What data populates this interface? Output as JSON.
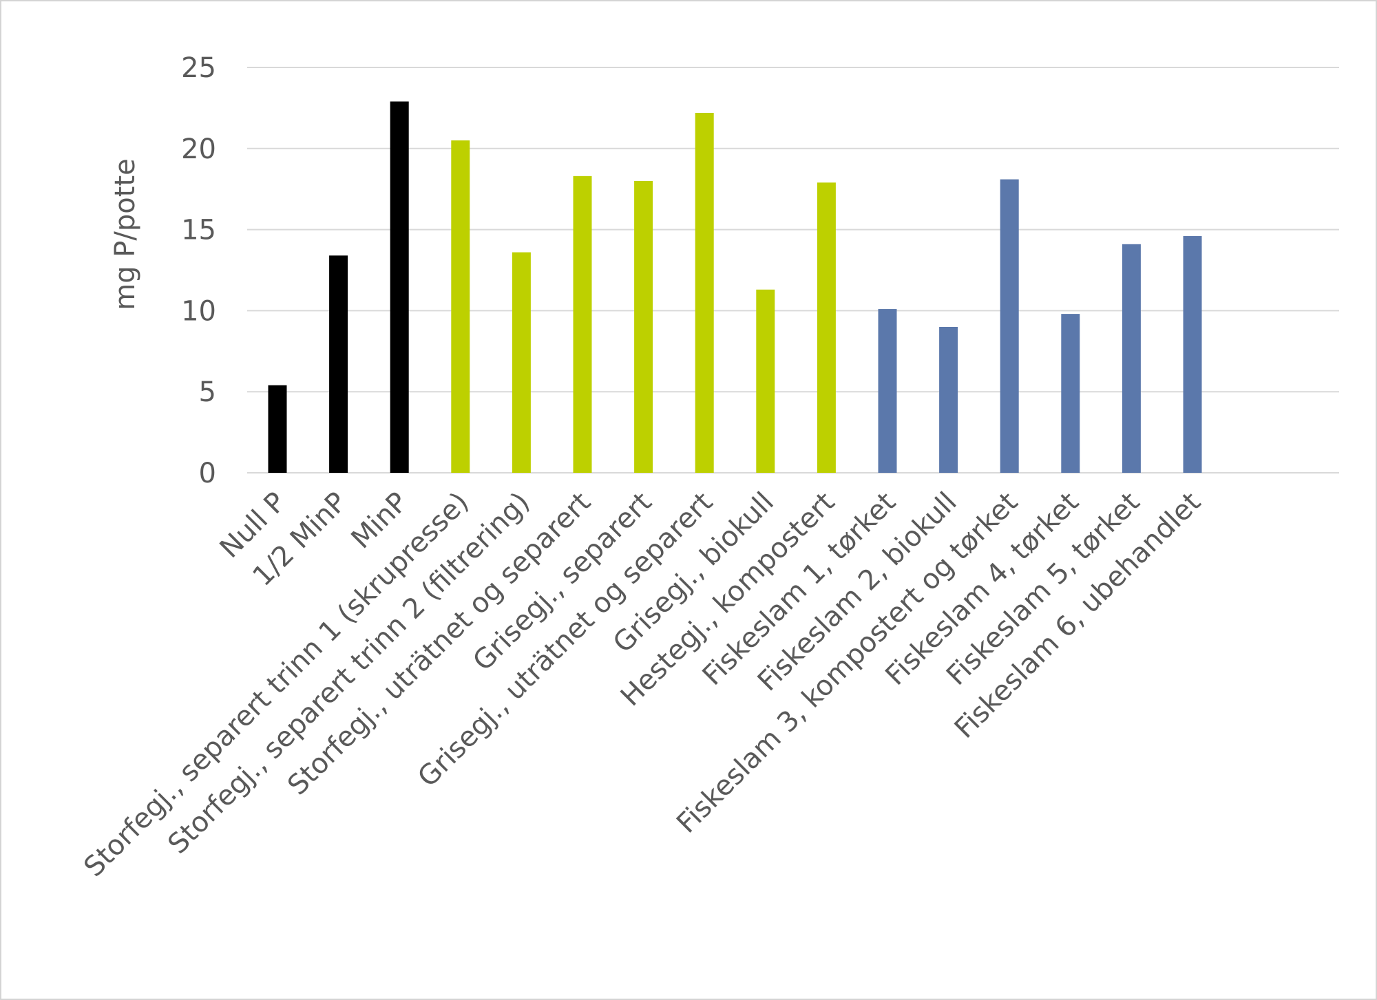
{
  "chart_data": {
    "type": "bar",
    "title": "",
    "xlabel": "",
    "ylabel": "mg P/potte",
    "ylim": [
      0,
      25
    ],
    "yticks": [
      0,
      5,
      10,
      15,
      20,
      25
    ],
    "grid": true,
    "legend": "none",
    "categories": [
      "Null P",
      "1/2 MinP",
      "MinP",
      "Storfegj., separert trinn 1 (skrupresse)",
      "Storfegj., separert trinn 2 (filtrering)",
      "Storfegj., uträtnet og separert",
      "Grisegj., separert",
      "Grisegj., uträtnet og separert",
      "Grisegj., biokull",
      "Hestegj., kompostert",
      "Fiskeslam 1, tørket",
      "Fiskeslam 2, biokull",
      "Fiskeslam 3, kompostert og tørket",
      "Fiskeslam 4, tørket",
      "Fiskeslam 5, tørket",
      "Fiskeslam 6,  ubehandlet"
    ],
    "values": [
      5.4,
      13.4,
      22.9,
      20.5,
      13.6,
      18.3,
      18.0,
      22.2,
      11.3,
      17.9,
      10.1,
      9.0,
      18.1,
      9.8,
      14.1,
      14.6
    ],
    "bar_colors": [
      "#000000",
      "#000000",
      "#000000",
      "#bdd000",
      "#bdd000",
      "#bdd000",
      "#bdd000",
      "#bdd000",
      "#bdd000",
      "#bdd000",
      "#5b78ab",
      "#5b78ab",
      "#5b78ab",
      "#5b78ab",
      "#5b78ab",
      "#5b78ab"
    ],
    "colors": {
      "reference": "#000000",
      "manure": "#bdd000",
      "fish_sludge": "#5b78ab",
      "gridline": "#d9d9d9",
      "text": "#595959"
    }
  }
}
